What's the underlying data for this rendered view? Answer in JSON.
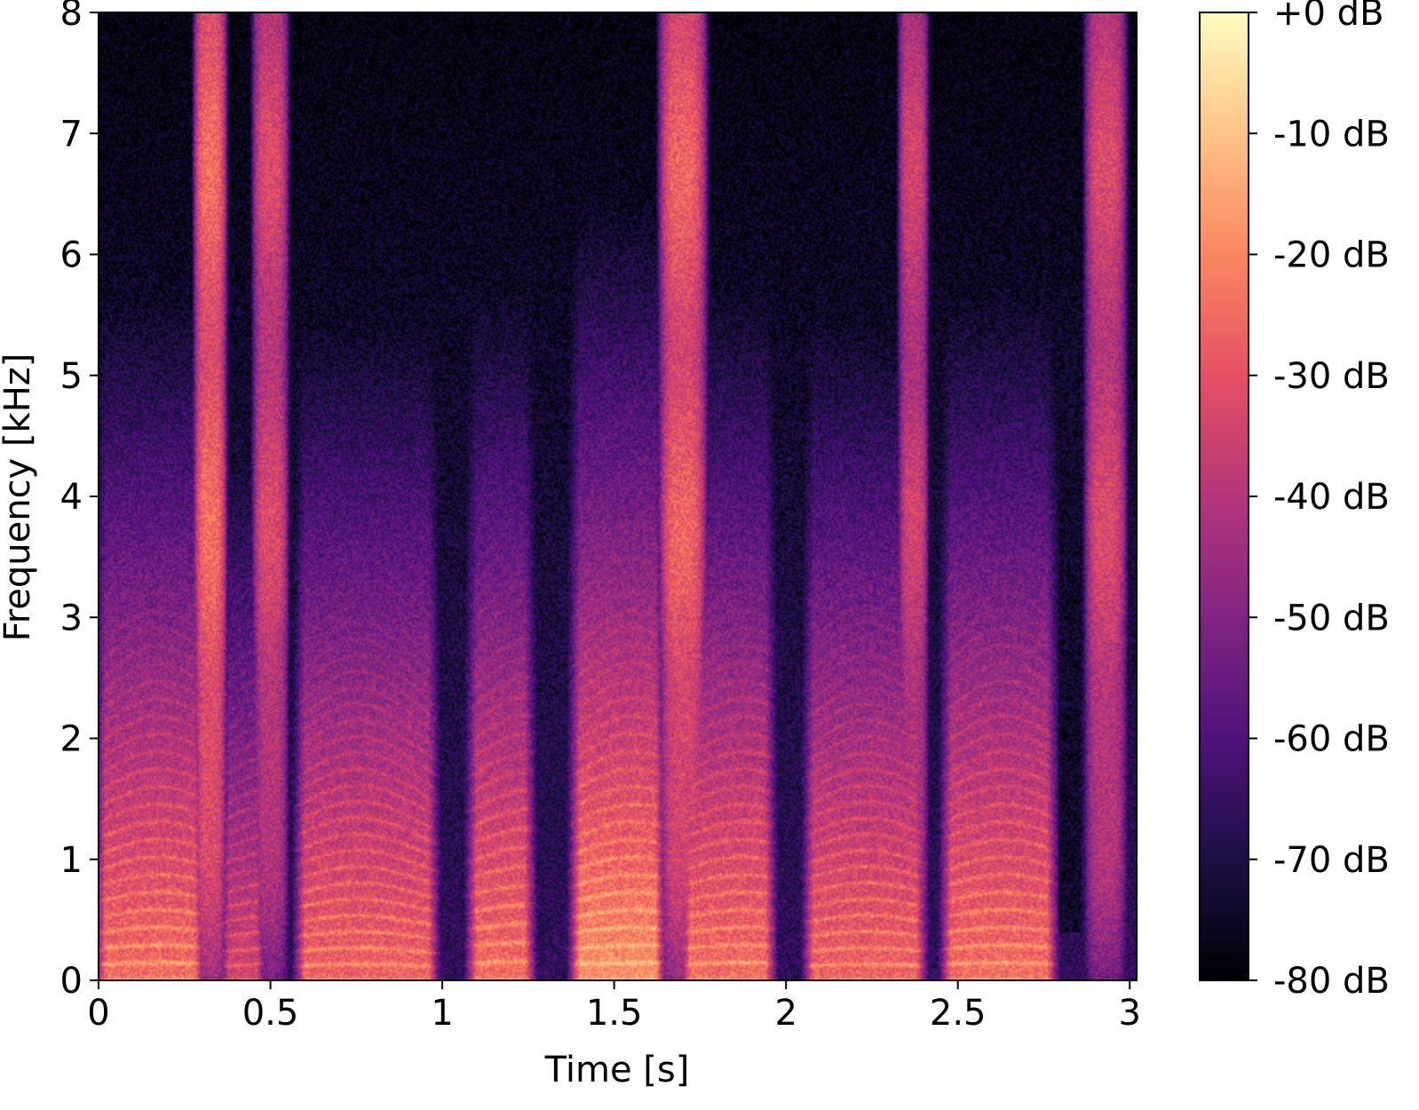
{
  "chart_data": {
    "type": "heatmap",
    "title": "",
    "xlabel": "Time [s]",
    "ylabel": "Frequency [kHz]",
    "xlim": [
      0,
      3.02
    ],
    "ylim": [
      0,
      8
    ],
    "x_ticks": [
      {
        "value": 0,
        "label": "0"
      },
      {
        "value": 0.5,
        "label": "0.5"
      },
      {
        "value": 1,
        "label": "1"
      },
      {
        "value": 1.5,
        "label": "1.5"
      },
      {
        "value": 2,
        "label": "2"
      },
      {
        "value": 2.5,
        "label": "2.5"
      },
      {
        "value": 3,
        "label": "3"
      }
    ],
    "y_ticks": [
      {
        "value": 0,
        "label": "0"
      },
      {
        "value": 1,
        "label": "1"
      },
      {
        "value": 2,
        "label": "2"
      },
      {
        "value": 3,
        "label": "3"
      },
      {
        "value": 4,
        "label": "4"
      },
      {
        "value": 5,
        "label": "5"
      },
      {
        "value": 6,
        "label": "6"
      },
      {
        "value": 7,
        "label": "7"
      },
      {
        "value": 8,
        "label": "8"
      }
    ],
    "colorbar": {
      "colormap": "magma",
      "range_db": [
        -80,
        0
      ],
      "ticks": [
        {
          "value": 0,
          "label": "+0 dB"
        },
        {
          "value": -10,
          "label": "-10 dB"
        },
        {
          "value": -20,
          "label": "-20 dB"
        },
        {
          "value": -30,
          "label": "-30 dB"
        },
        {
          "value": -40,
          "label": "-40 dB"
        },
        {
          "value": -50,
          "label": "-50 dB"
        },
        {
          "value": -60,
          "label": "-60 dB"
        },
        {
          "value": -70,
          "label": "-70 dB"
        },
        {
          "value": -80,
          "label": "-80 dB"
        }
      ]
    },
    "voiced_segments": [
      {
        "start": 0.0,
        "end": 0.3,
        "f0_khz": 0.13,
        "level_db": -14
      },
      {
        "start": 0.36,
        "end": 0.48,
        "f0_khz": 0.12,
        "level_db": -24
      },
      {
        "start": 0.58,
        "end": 0.98,
        "f0_khz": 0.12,
        "level_db": -16
      },
      {
        "start": 1.08,
        "end": 1.26,
        "f0_khz": 0.14,
        "level_db": -14
      },
      {
        "start": 1.38,
        "end": 1.64,
        "f0_khz": 0.13,
        "level_db": -8
      },
      {
        "start": 1.7,
        "end": 1.96,
        "f0_khz": 0.13,
        "level_db": -14
      },
      {
        "start": 2.06,
        "end": 2.4,
        "f0_khz": 0.12,
        "level_db": -16
      },
      {
        "start": 2.46,
        "end": 2.78,
        "f0_khz": 0.13,
        "level_db": -14
      }
    ],
    "fricative_segments": [
      {
        "start": 0.27,
        "end": 0.38,
        "level_db": -28
      },
      {
        "start": 0.44,
        "end": 0.56,
        "level_db": -36
      },
      {
        "start": 1.62,
        "end": 1.78,
        "level_db": -30
      },
      {
        "start": 2.32,
        "end": 2.42,
        "level_db": -38
      },
      {
        "start": 2.86,
        "end": 3.0,
        "level_db": -36
      }
    ],
    "silence_segments": [
      {
        "start": 2.79,
        "end": 2.86
      }
    ]
  },
  "colors": {
    "background": "#ffffff",
    "axis": "#000000",
    "colormap_stops": [
      "#000004",
      "#1c1044",
      "#4f127b",
      "#812581",
      "#b5367a",
      "#e55064",
      "#fb8761",
      "#fec287",
      "#fcfdbf"
    ]
  }
}
